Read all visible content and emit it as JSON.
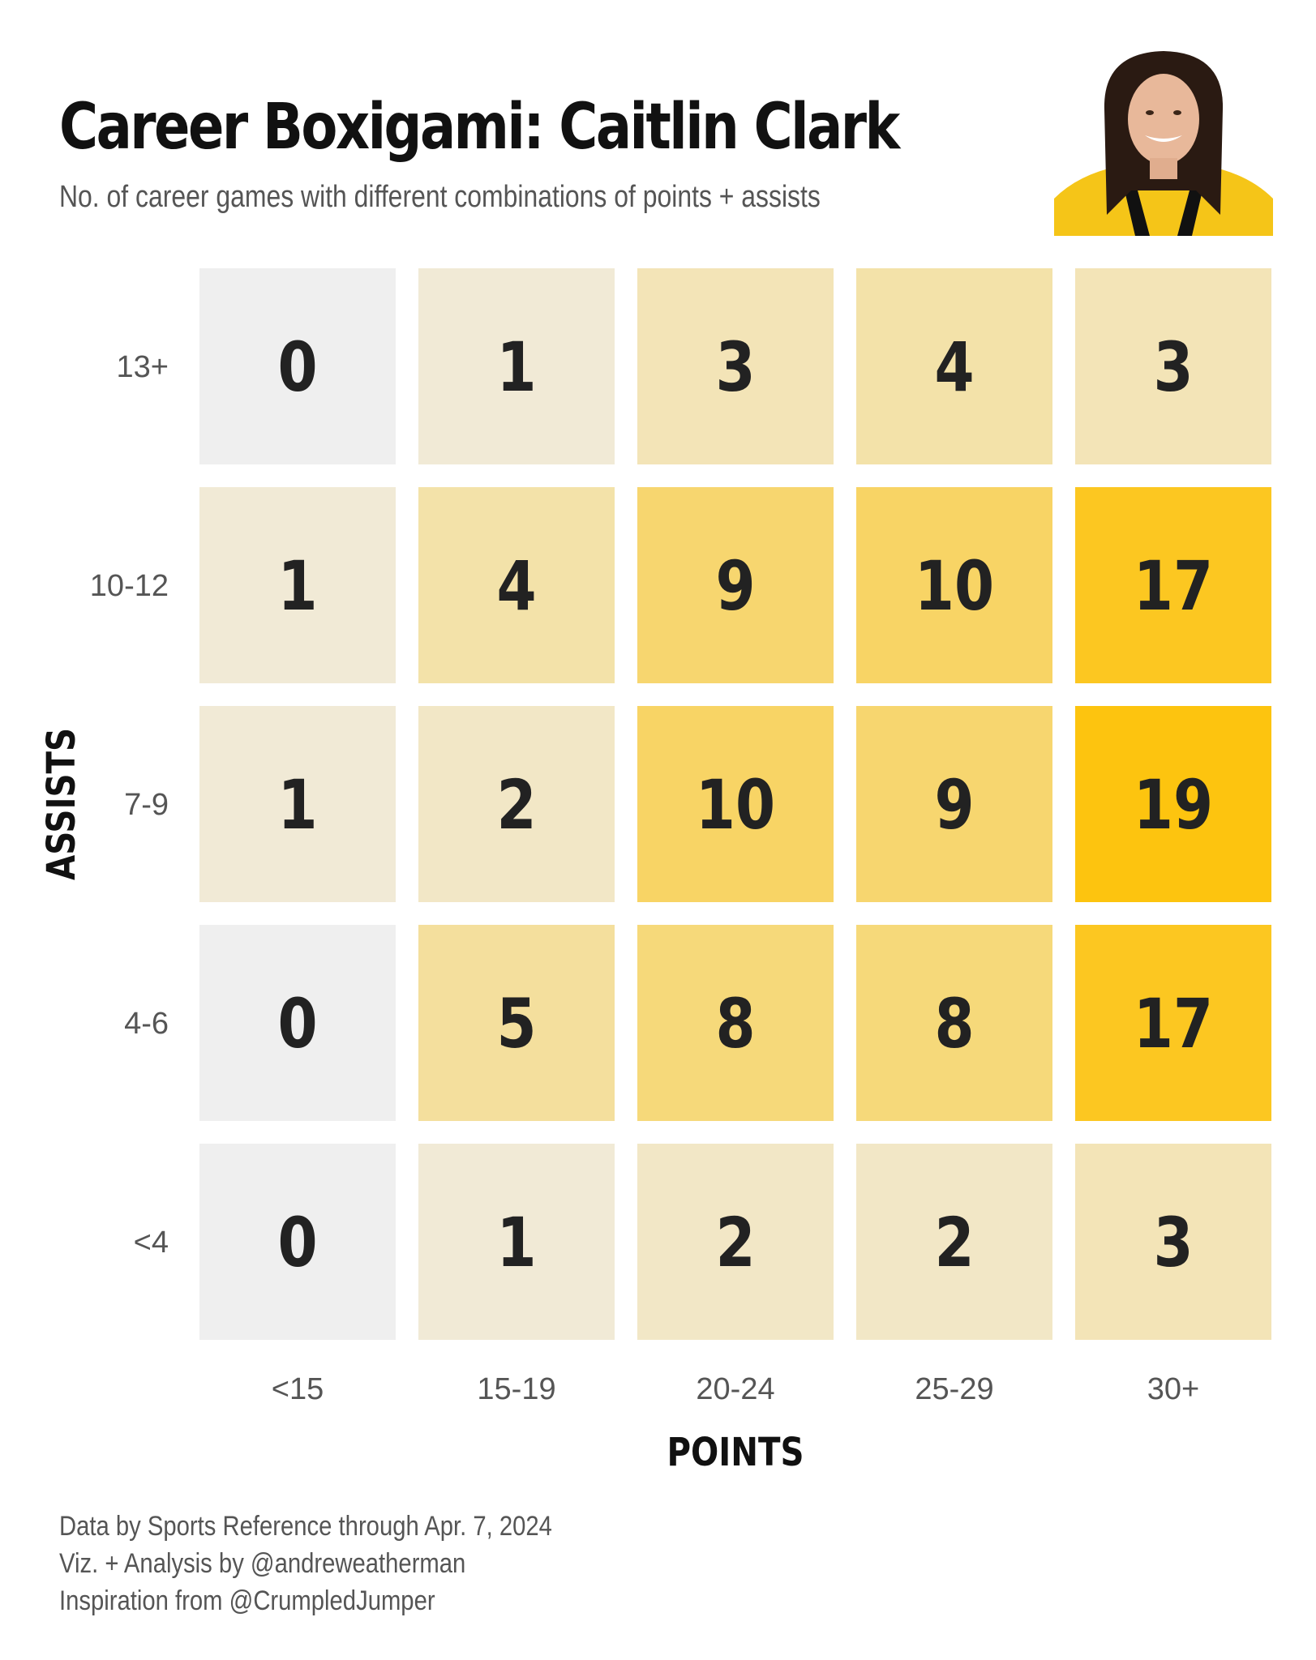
{
  "chart_data": {
    "type": "heatmap",
    "title": "Career Boxigami: Caitlin Clark",
    "subtitle": "No. of career games with different combinations of points + assists",
    "xlabel": "POINTS",
    "ylabel": "ASSISTS",
    "x_categories": [
      "<15",
      "15-19",
      "20-24",
      "25-29",
      "30+"
    ],
    "y_categories": [
      "13+",
      "10-12",
      "7-9",
      "4-6",
      "<4"
    ],
    "values": [
      [
        0,
        1,
        3,
        4,
        3
      ],
      [
        1,
        4,
        9,
        10,
        17
      ],
      [
        1,
        2,
        10,
        9,
        19
      ],
      [
        0,
        5,
        8,
        8,
        17
      ],
      [
        0,
        1,
        2,
        2,
        3
      ]
    ],
    "color_scale": {
      "low": "#efefef",
      "high": "#fdc40f"
    }
  },
  "footer": {
    "line1": "Data by Sports Reference through Apr. 7, 2024",
    "line2": "Viz. + Analysis by @andreweatherman",
    "line3": "Inspiration from @CrumpledJumper"
  }
}
